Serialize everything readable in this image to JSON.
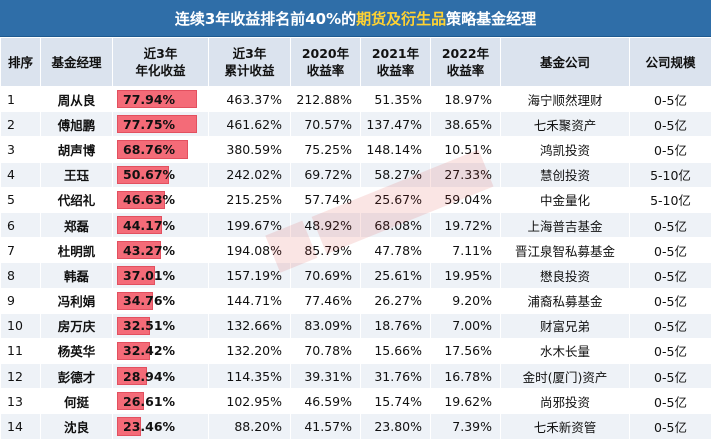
{
  "title": {
    "prefix": "连续3年收益排名前40%的",
    "highlight": "期货及衍生品",
    "suffix": "策略基金经理"
  },
  "headers": {
    "rank": "排序",
    "manager": "基金经理",
    "annual_l1": "近3年",
    "annual_l2": "年化收益",
    "cum_l1": "近3年",
    "cum_l2": "累计收益",
    "y2020_l1": "2020年",
    "y2020_l2": "收益率",
    "y2021_l1": "2021年",
    "y2021_l2": "收益率",
    "y2022_l1": "2022年",
    "y2022_l2": "收益率",
    "company": "基金公司",
    "scale": "公司规模"
  },
  "colors": {
    "title_bg": "#2f6ea8",
    "highlight": "#ffd232",
    "bar": "#f46b78",
    "header_bg": "#dbe3ee",
    "stripe": "#eef2f7"
  },
  "bar_max": 77.94,
  "rows": [
    {
      "rank": "1",
      "manager": "周从良",
      "annual": "77.94%",
      "annual_value": 77.94,
      "cum": "463.37%",
      "y2020": "212.88%",
      "y2021": "51.35%",
      "y2022": "18.97%",
      "company": "海宁顺然理财",
      "scale": "0-5亿"
    },
    {
      "rank": "2",
      "manager": "傅旭鹏",
      "annual": "77.75%",
      "annual_value": 77.75,
      "cum": "461.62%",
      "y2020": "70.57%",
      "y2021": "137.47%",
      "y2022": "38.65%",
      "company": "七禾聚资产",
      "scale": "0-5亿"
    },
    {
      "rank": "3",
      "manager": "胡声博",
      "annual": "68.76%",
      "annual_value": 68.76,
      "cum": "380.59%",
      "y2020": "75.25%",
      "y2021": "148.14%",
      "y2022": "10.51%",
      "company": "鸿凯投资",
      "scale": "0-5亿"
    },
    {
      "rank": "4",
      "manager": "王珏",
      "annual": "50.67%",
      "annual_value": 50.67,
      "cum": "242.02%",
      "y2020": "69.72%",
      "y2021": "58.27%",
      "y2022": "27.33%",
      "company": "慧创投资",
      "scale": "5-10亿"
    },
    {
      "rank": "5",
      "manager": "代绍礼",
      "annual": "46.63%",
      "annual_value": 46.63,
      "cum": "215.25%",
      "y2020": "57.74%",
      "y2021": "25.67%",
      "y2022": "59.04%",
      "company": "中金量化",
      "scale": "5-10亿"
    },
    {
      "rank": "6",
      "manager": "郑磊",
      "annual": "44.17%",
      "annual_value": 44.17,
      "cum": "199.67%",
      "y2020": "48.92%",
      "y2021": "68.08%",
      "y2022": "19.72%",
      "company": "上海普吉基金",
      "scale": "0-5亿"
    },
    {
      "rank": "7",
      "manager": "杜明凯",
      "annual": "43.27%",
      "annual_value": 43.27,
      "cum": "194.08%",
      "y2020": "85.79%",
      "y2021": "47.78%",
      "y2022": "7.11%",
      "company": "晋江泉智私募基金",
      "scale": "0-5亿"
    },
    {
      "rank": "8",
      "manager": "韩磊",
      "annual": "37.01%",
      "annual_value": 37.01,
      "cum": "157.19%",
      "y2020": "70.69%",
      "y2021": "25.61%",
      "y2022": "19.95%",
      "company": "懋良投资",
      "scale": "0-5亿"
    },
    {
      "rank": "9",
      "manager": "冯利娟",
      "annual": "34.76%",
      "annual_value": 34.76,
      "cum": "144.71%",
      "y2020": "77.46%",
      "y2021": "26.27%",
      "y2022": "9.20%",
      "company": "浦裔私募基金",
      "scale": "0-5亿"
    },
    {
      "rank": "10",
      "manager": "房万庆",
      "annual": "32.51%",
      "annual_value": 32.51,
      "cum": "132.66%",
      "y2020": "83.09%",
      "y2021": "18.76%",
      "y2022": "7.00%",
      "company": "财富兄弟",
      "scale": "0-5亿"
    },
    {
      "rank": "11",
      "manager": "杨英华",
      "annual": "32.42%",
      "annual_value": 32.42,
      "cum": "132.20%",
      "y2020": "70.78%",
      "y2021": "15.66%",
      "y2022": "17.56%",
      "company": "水木长量",
      "scale": "0-5亿"
    },
    {
      "rank": "12",
      "manager": "彭德才",
      "annual": "28.94%",
      "annual_value": 28.94,
      "cum": "114.35%",
      "y2020": "39.31%",
      "y2021": "31.76%",
      "y2022": "16.78%",
      "company": "金时(厦门)资产",
      "scale": "0-5亿"
    },
    {
      "rank": "13",
      "manager": "何挺",
      "annual": "26.61%",
      "annual_value": 26.61,
      "cum": "102.95%",
      "y2020": "46.59%",
      "y2021": "15.74%",
      "y2022": "19.62%",
      "company": "尚邪投资",
      "scale": "0-5亿"
    },
    {
      "rank": "14",
      "manager": "沈良",
      "annual": "23.46%",
      "annual_value": 23.46,
      "cum": "88.20%",
      "y2020": "41.57%",
      "y2021": "23.80%",
      "y2022": "7.39%",
      "company": "七禾新资管",
      "scale": "0-5亿"
    }
  ]
}
